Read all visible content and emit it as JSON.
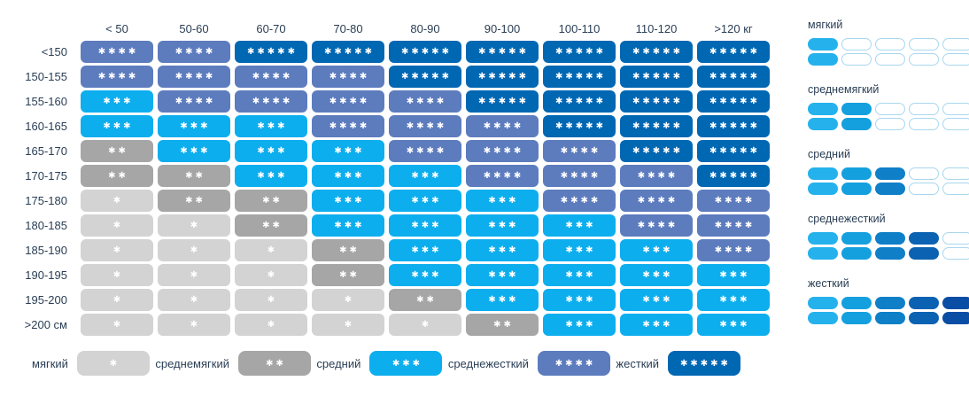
{
  "table": {
    "columns": [
      "< 50",
      "50-60",
      "60-70",
      "70-80",
      "80-90",
      "90-100",
      "100-110",
      "110-120",
      ">120 кг"
    ],
    "rows": [
      {
        "label": "<150",
        "values": [
          4,
          4,
          5,
          5,
          5,
          5,
          5,
          5,
          5
        ]
      },
      {
        "label": "150-155",
        "values": [
          4,
          4,
          4,
          4,
          5,
          5,
          5,
          5,
          5
        ]
      },
      {
        "label": "155-160",
        "values": [
          3,
          4,
          4,
          4,
          4,
          5,
          5,
          5,
          5
        ]
      },
      {
        "label": "160-165",
        "values": [
          3,
          3,
          3,
          4,
          4,
          4,
          5,
          5,
          5
        ]
      },
      {
        "label": "165-170",
        "values": [
          2,
          3,
          3,
          3,
          4,
          4,
          4,
          5,
          5
        ]
      },
      {
        "label": "170-175",
        "values": [
          2,
          2,
          3,
          3,
          3,
          4,
          4,
          4,
          5
        ]
      },
      {
        "label": "175-180",
        "values": [
          1,
          2,
          2,
          3,
          3,
          3,
          4,
          4,
          4
        ]
      },
      {
        "label": "180-185",
        "values": [
          1,
          1,
          2,
          3,
          3,
          3,
          3,
          4,
          4
        ]
      },
      {
        "label": "185-190",
        "values": [
          1,
          1,
          1,
          2,
          3,
          3,
          3,
          3,
          4
        ]
      },
      {
        "label": "190-195",
        "values": [
          1,
          1,
          1,
          2,
          3,
          3,
          3,
          3,
          3
        ]
      },
      {
        "label": "195-200",
        "values": [
          1,
          1,
          1,
          1,
          2,
          3,
          3,
          3,
          3
        ]
      },
      {
        "label": ">200 см",
        "values": [
          1,
          1,
          1,
          1,
          1,
          2,
          3,
          3,
          3
        ]
      }
    ]
  },
  "levels": [
    {
      "name": "мягкий",
      "slug": "soft",
      "color": "#d3d3d3",
      "stars": "✱"
    },
    {
      "name": "среднемягкий",
      "slug": "medium-soft",
      "color": "#a6a6a6",
      "stars": "✱✱"
    },
    {
      "name": "средний",
      "slug": "medium",
      "color": "#0daeee",
      "stars": "✱✱✱"
    },
    {
      "name": "среднежесткий",
      "slug": "medium-firm",
      "color": "#5d7cbe",
      "stars": "✱✱✱✱"
    },
    {
      "name": "жесткий",
      "slug": "firm",
      "color": "#0067b3",
      "stars": "✱✱✱✱✱"
    }
  ],
  "sidebar": {
    "icon_fills": [
      "#25b2ec",
      "#14a0de",
      "#0f7fc8",
      "#0c62b2",
      "#0a4da5"
    ],
    "icon_empty_border": "#a9d7ef",
    "items": [
      {
        "label": "мягкий",
        "slug": "soft",
        "filled": 1
      },
      {
        "label": "среднемягкий",
        "slug": "medium-soft",
        "filled": 2
      },
      {
        "label": "средний",
        "slug": "medium",
        "filled": 3
      },
      {
        "label": "среднежесткий",
        "slug": "medium-firm",
        "filled": 4
      },
      {
        "label": "жесткий",
        "slug": "firm",
        "filled": 5
      }
    ]
  },
  "chart_data": {
    "type": "heatmap",
    "x_categories": [
      "< 50",
      "50-60",
      "60-70",
      "70-80",
      "80-90",
      "90-100",
      "100-110",
      "110-120",
      ">120 кг"
    ],
    "y_categories": [
      "<150",
      "150-155",
      "155-160",
      "160-165",
      "165-170",
      "170-175",
      "175-180",
      "180-185",
      "185-190",
      "190-195",
      "195-200",
      ">200 см"
    ],
    "values": [
      [
        4,
        4,
        5,
        5,
        5,
        5,
        5,
        5,
        5
      ],
      [
        4,
        4,
        4,
        4,
        5,
        5,
        5,
        5,
        5
      ],
      [
        3,
        4,
        4,
        4,
        4,
        5,
        5,
        5,
        5
      ],
      [
        3,
        3,
        3,
        4,
        4,
        4,
        5,
        5,
        5
      ],
      [
        2,
        3,
        3,
        3,
        4,
        4,
        4,
        5,
        5
      ],
      [
        2,
        2,
        3,
        3,
        3,
        4,
        4,
        4,
        5
      ],
      [
        1,
        2,
        2,
        3,
        3,
        3,
        4,
        4,
        4
      ],
      [
        1,
        1,
        2,
        3,
        3,
        3,
        3,
        4,
        4
      ],
      [
        1,
        1,
        1,
        2,
        3,
        3,
        3,
        3,
        4
      ],
      [
        1,
        1,
        1,
        2,
        3,
        3,
        3,
        3,
        3
      ],
      [
        1,
        1,
        1,
        1,
        2,
        3,
        3,
        3,
        3
      ],
      [
        1,
        1,
        1,
        1,
        1,
        2,
        3,
        3,
        3
      ]
    ],
    "value_labels": {
      "1": "✱ мягкий",
      "2": "✱✱ среднемягкий",
      "3": "✱✱✱ средний",
      "4": "✱✱✱✱ среднежесткий",
      "5": "✱✱✱✱✱ жесткий"
    },
    "value_colors": {
      "1": "#d3d3d3",
      "2": "#a6a6a6",
      "3": "#0daeee",
      "4": "#5d7cbe",
      "5": "#0067b3"
    },
    "legend_position": "bottom and right",
    "grid": false
  }
}
